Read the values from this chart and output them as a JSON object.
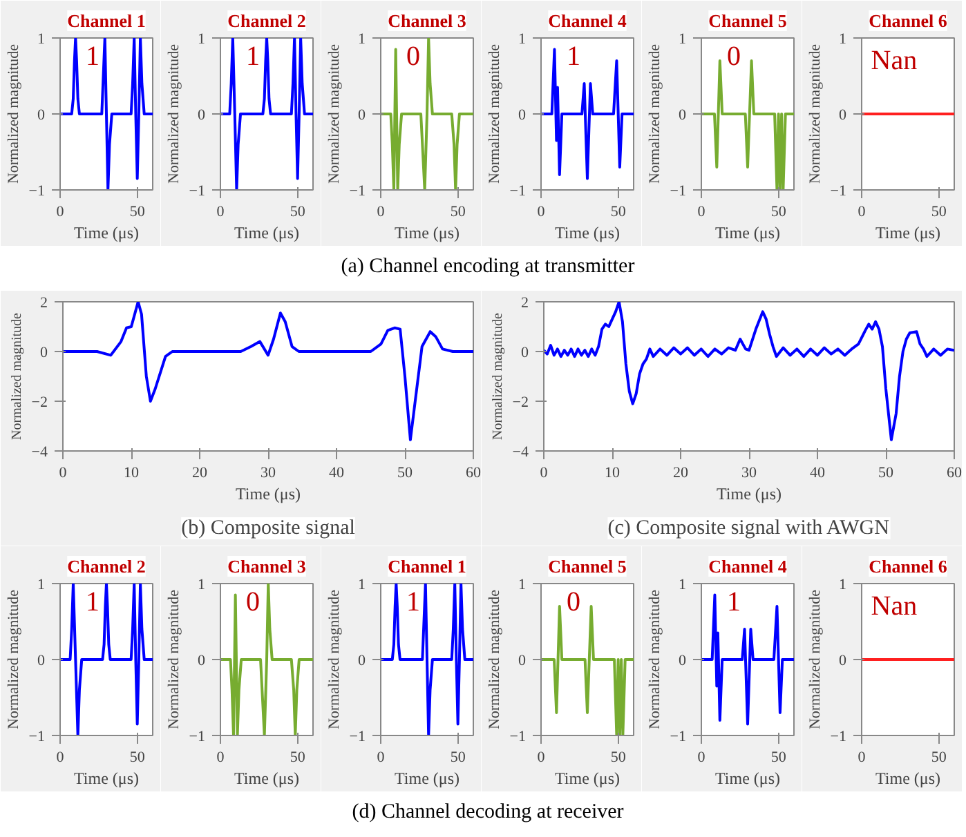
{
  "chart_data": [
    {
      "type": "line",
      "title": "Channel 1",
      "xlabel": "Time (μs)",
      "ylabel": "Normalized magnitude",
      "xlim": [
        0,
        60
      ],
      "ylim": [
        -1,
        1
      ],
      "xticks": [
        0,
        50
      ],
      "yticks": [
        -1,
        0,
        1
      ],
      "annotations": [
        "1",
        "(a) Channel encoding at transmitter"
      ],
      "x": [
        0,
        7.5,
        8.5,
        9.3,
        10,
        10.7,
        11.5,
        12.5,
        27,
        28,
        29,
        30,
        31,
        32,
        33.5,
        46,
        47,
        48,
        49,
        50,
        51,
        52,
        53,
        54.5,
        60
      ],
      "series": [
        {
          "color": "#0000ff",
          "values": [
            0,
            0,
            0.2,
            0.7,
            1,
            0.7,
            0.2,
            0,
            0,
            0.5,
            1,
            0,
            -1,
            -0.4,
            0,
            0,
            0.4,
            1,
            0,
            -0.85,
            0,
            1,
            0.4,
            0,
            0
          ]
        }
      ]
    },
    {
      "type": "line",
      "title": "Channel 2",
      "xlabel": "Time (μs)",
      "ylabel": "Normalized magnitude",
      "xlim": [
        0,
        60
      ],
      "ylim": [
        -1,
        1
      ],
      "xticks": [
        0,
        50
      ],
      "yticks": [
        -1,
        0,
        1
      ],
      "annotations": [
        "1"
      ],
      "x": [
        0,
        6,
        7,
        8,
        9.3,
        10.5,
        11.5,
        13,
        27.5,
        28.5,
        29.3,
        30,
        30.7,
        31.5,
        32.5,
        46,
        47,
        48,
        49,
        50,
        51,
        52,
        53,
        54.5,
        60
      ],
      "series": [
        {
          "color": "#0000ff",
          "values": [
            0,
            0,
            0.4,
            1,
            0,
            -1,
            -0.4,
            0,
            0,
            0.2,
            0.7,
            1,
            0.7,
            0.2,
            0,
            0,
            0.4,
            1,
            0,
            -0.85,
            0,
            1,
            0.4,
            0,
            0
          ]
        }
      ]
    },
    {
      "type": "line",
      "title": "Channel 3",
      "xlabel": "Time (μs)",
      "ylabel": "Normalized magnitude",
      "xlim": [
        0,
        60
      ],
      "ylim": [
        -1,
        1
      ],
      "xticks": [
        0,
        50
      ],
      "yticks": [
        -1,
        0,
        1
      ],
      "annotations": [
        "0"
      ],
      "x": [
        0,
        6.5,
        7.5,
        8.5,
        9.7,
        11,
        12,
        13.5,
        26,
        27,
        28.5,
        30,
        31,
        32,
        33.5,
        46,
        47.5,
        48.5,
        49.5,
        51,
        60
      ],
      "series": [
        {
          "color": "#77ac30",
          "values": [
            0,
            0,
            -0.4,
            -1,
            0.85,
            -1,
            -0.4,
            0,
            0,
            -0.4,
            -1,
            0,
            1,
            0.4,
            0,
            0,
            -0.4,
            -1,
            -0.4,
            0,
            0
          ]
        }
      ]
    },
    {
      "type": "line",
      "title": "Channel 4",
      "xlabel": "Time (μs)",
      "ylabel": "Normalized magnitude",
      "xlim": [
        0,
        60
      ],
      "ylim": [
        -1,
        1
      ],
      "xticks": [
        0,
        50
      ],
      "yticks": [
        -1,
        0,
        1
      ],
      "annotations": [
        "1"
      ],
      "x": [
        0,
        7,
        8.7,
        10,
        10.7,
        12,
        13.5,
        26.5,
        28,
        30,
        32,
        33.5,
        47,
        49,
        51,
        52.5,
        60
      ],
      "series": [
        {
          "color": "#0000ff",
          "values": [
            0,
            0,
            0.85,
            -0.35,
            0.35,
            -0.8,
            0,
            0,
            0.4,
            -0.85,
            0.4,
            0,
            0,
            0.7,
            -0.7,
            0,
            0
          ]
        }
      ]
    },
    {
      "type": "line",
      "title": "Channel 5",
      "xlabel": "Time (μs)",
      "ylabel": "Normalized magnitude",
      "xlim": [
        0,
        60
      ],
      "ylim": [
        -1,
        1
      ],
      "xticks": [
        0,
        50
      ],
      "yticks": [
        -1,
        0,
        1
      ],
      "annotations": [
        "0"
      ],
      "x": [
        0,
        8.5,
        10,
        12,
        13.5,
        28.5,
        30,
        32.5,
        34,
        47.5,
        49,
        50,
        51,
        52,
        53,
        54.5,
        60
      ],
      "series": [
        {
          "color": "#77ac30",
          "values": [
            0,
            0,
            -0.7,
            0.7,
            0,
            0,
            -0.7,
            0.7,
            0,
            0,
            -1,
            0,
            -1,
            0,
            -1,
            0,
            0
          ]
        }
      ]
    },
    {
      "type": "line",
      "title": "Channel 6",
      "xlabel": "Time (μs)",
      "ylabel": "Normalized magnitude",
      "xlim": [
        0,
        60
      ],
      "ylim": [
        -1,
        1
      ],
      "xticks": [
        0,
        50
      ],
      "yticks": [
        -1,
        0,
        1
      ],
      "annotations": [
        "Nan"
      ],
      "x": [
        0,
        60
      ],
      "series": [
        {
          "color": "#ff2020",
          "values": [
            0,
            0
          ]
        }
      ]
    },
    {
      "type": "line",
      "xlabel": "Time (μs)",
      "ylabel": "Normalized magnitude",
      "xlim": [
        0,
        60
      ],
      "ylim": [
        -4,
        2
      ],
      "xticks": [
        0,
        10,
        20,
        30,
        40,
        50,
        60
      ],
      "yticks": [
        -4,
        -2,
        0,
        2
      ],
      "annotations": [
        "(b) Composite signal"
      ],
      "x": [
        0,
        5,
        7,
        8.5,
        9.3,
        10,
        11,
        11.5,
        12.2,
        12.8,
        13.5,
        15,
        16,
        26,
        27.5,
        28.8,
        30,
        30.8,
        31.8,
        32.5,
        33.5,
        34.5,
        45,
        46.5,
        47.5,
        48.5,
        49.3,
        50,
        50.8,
        51.5,
        52.5,
        53.7,
        54.5,
        55.5,
        57,
        60
      ],
      "series": [
        {
          "color": "#0000ff",
          "values": [
            0,
            0,
            -0.15,
            0.4,
            0.95,
            1,
            2,
            1.5,
            -1,
            -2,
            -1.5,
            -0.2,
            0,
            0,
            0.2,
            0.4,
            -0.15,
            0.5,
            1.55,
            1.2,
            0.2,
            0,
            0,
            0.3,
            0.85,
            0.95,
            0.9,
            -1,
            -3.55,
            -2,
            0.2,
            0.8,
            0.6,
            0.1,
            0,
            0
          ]
        }
      ]
    },
    {
      "type": "line",
      "xlabel": "Time (μs)",
      "ylabel": "Normalized magnitude",
      "xlim": [
        0,
        60
      ],
      "ylim": [
        -4,
        2
      ],
      "xticks": [
        0,
        10,
        20,
        30,
        40,
        50,
        60
      ],
      "yticks": [
        -4,
        -2,
        0,
        2
      ],
      "annotations": [
        "(c) Composite signal with AWGN"
      ],
      "x": [
        0,
        0.5,
        1,
        1.5,
        2,
        2.5,
        3,
        3.5,
        4,
        4.5,
        5,
        5.5,
        6,
        6.5,
        7,
        7.5,
        8,
        8.5,
        9,
        9.5,
        10,
        10.5,
        11,
        11.5,
        12,
        12.5,
        13,
        13.5,
        14,
        14.5,
        15,
        15.5,
        16,
        17,
        18,
        19,
        20,
        21,
        22,
        23,
        24,
        25,
        26,
        27,
        28,
        28.7,
        29.5,
        30,
        31,
        32,
        32.5,
        33,
        33.5,
        34,
        35,
        36,
        37,
        38,
        39,
        40,
        41,
        42,
        43,
        44,
        45,
        46,
        47,
        47.5,
        48,
        48.5,
        49,
        49.5,
        50,
        50.8,
        51.5,
        52,
        52.5,
        53,
        53.5,
        54.5,
        55,
        55.5,
        56,
        57,
        58,
        59,
        60
      ],
      "series": [
        {
          "color": "#0000ff",
          "values": [
            0.05,
            -0.1,
            0.25,
            -0.15,
            0.1,
            -0.2,
            0.05,
            -0.15,
            0.1,
            -0.2,
            0.1,
            -0.15,
            0.05,
            -0.2,
            0.1,
            -0.15,
            0.2,
            0.9,
            1.1,
            1.0,
            1.3,
            1.6,
            2.0,
            1.2,
            -0.5,
            -1.6,
            -2.1,
            -1.7,
            -0.9,
            -0.5,
            -0.3,
            0.1,
            -0.2,
            0.1,
            -0.15,
            0.15,
            -0.1,
            0.15,
            -0.15,
            0.1,
            -0.2,
            0.1,
            -0.1,
            0.15,
            0.05,
            0.5,
            0.1,
            0.05,
            0.9,
            1.6,
            1.3,
            0.7,
            0.2,
            -0.2,
            0.15,
            -0.15,
            0.1,
            -0.2,
            0.1,
            -0.15,
            0.15,
            -0.1,
            0.1,
            -0.15,
            0.1,
            0.3,
            0.85,
            1.1,
            0.9,
            1.2,
            0.9,
            0.2,
            -1.5,
            -3.55,
            -2.5,
            -1.0,
            0.0,
            0.5,
            0.75,
            0.8,
            0.3,
            0.1,
            -0.2,
            0.1,
            -0.15,
            0.1,
            0.05
          ]
        }
      ]
    },
    {
      "type": "line",
      "title": "Channel 2",
      "xlabel": "Time (μs)",
      "ylabel": "Normalized magnitude",
      "xlim": [
        0,
        60
      ],
      "ylim": [
        -1,
        1
      ],
      "xticks": [
        0,
        50
      ],
      "yticks": [
        -1,
        0,
        1
      ],
      "annotations": [
        "1",
        "(d) Channel decoding at receiver"
      ],
      "x": [
        0,
        6.5,
        7.5,
        8.5,
        10,
        11.5,
        12.5,
        14,
        27.5,
        28.5,
        29.3,
        30,
        30.7,
        31.5,
        32.5,
        46,
        47,
        48,
        49,
        50,
        51,
        52,
        53,
        54.5,
        60
      ],
      "series": [
        {
          "color": "#0000ff",
          "values": [
            0,
            0,
            0.4,
            1,
            0,
            -1,
            -0.4,
            0,
            0,
            0.2,
            0.7,
            1,
            0.7,
            0.2,
            0,
            0,
            0.4,
            1,
            0,
            -0.85,
            0,
            1,
            0.4,
            0,
            0
          ]
        }
      ]
    },
    {
      "type": "line",
      "title": "Channel 3",
      "xlabel": "Time (μs)",
      "ylabel": "Normalized magnitude",
      "xlim": [
        0,
        60
      ],
      "ylim": [
        -1,
        1
      ],
      "xticks": [
        0,
        50
      ],
      "yticks": [
        -1,
        0,
        1
      ],
      "annotations": [
        "0"
      ],
      "x": [
        0,
        6.5,
        7.5,
        8.5,
        9.7,
        11,
        12,
        13.5,
        26,
        27,
        28.5,
        30,
        31,
        32,
        33.5,
        46,
        47.5,
        48.5,
        49.5,
        51,
        60
      ],
      "series": [
        {
          "color": "#77ac30",
          "values": [
            0,
            0,
            -0.4,
            -1,
            0.85,
            -1,
            -0.4,
            0,
            0,
            -0.4,
            -1,
            0,
            1,
            0.4,
            0,
            0,
            -0.4,
            -1,
            -0.4,
            0,
            0
          ]
        }
      ]
    },
    {
      "type": "line",
      "title": "Channel 1",
      "xlabel": "Time (μs)",
      "ylabel": "Normalized magnitude",
      "xlim": [
        0,
        60
      ],
      "ylim": [
        -1,
        1
      ],
      "xticks": [
        0,
        50
      ],
      "yticks": [
        -1,
        0,
        1
      ],
      "annotations": [
        "1"
      ],
      "x": [
        0,
        7.5,
        8.5,
        9.3,
        10,
        10.7,
        11.5,
        12.5,
        27,
        28,
        29,
        30,
        31,
        32,
        33.5,
        46,
        47,
        48,
        49,
        50,
        51,
        52,
        53,
        54.5,
        60
      ],
      "series": [
        {
          "color": "#0000ff",
          "values": [
            0,
            0,
            0.2,
            0.7,
            1,
            0.7,
            0.2,
            0,
            0,
            0.5,
            1,
            0,
            -1,
            -0.4,
            0,
            0,
            0.4,
            1,
            0,
            -0.85,
            0,
            1,
            0.4,
            0,
            0
          ]
        }
      ]
    },
    {
      "type": "line",
      "title": "Channel 5",
      "xlabel": "Time (μs)",
      "ylabel": "Normalized magnitude",
      "xlim": [
        0,
        60
      ],
      "ylim": [
        -1,
        1
      ],
      "xticks": [
        0,
        50
      ],
      "yticks": [
        -1,
        0,
        1
      ],
      "annotations": [
        "0"
      ],
      "x": [
        0,
        8.5,
        10,
        12,
        13.5,
        28.5,
        30,
        32.5,
        34,
        47.5,
        49,
        50,
        51,
        52,
        53,
        54.5,
        60
      ],
      "series": [
        {
          "color": "#77ac30",
          "values": [
            0,
            0,
            -0.7,
            0.7,
            0,
            0,
            -0.7,
            0.7,
            0,
            0,
            -1,
            0,
            -1,
            0,
            -1,
            0,
            0
          ]
        }
      ]
    },
    {
      "type": "line",
      "title": "Channel 4",
      "xlabel": "Time (μs)",
      "ylabel": "Normalized magnitude",
      "xlim": [
        0,
        60
      ],
      "ylim": [
        -1,
        1
      ],
      "xticks": [
        0,
        50
      ],
      "yticks": [
        -1,
        0,
        1
      ],
      "annotations": [
        "1"
      ],
      "x": [
        0,
        7,
        8.7,
        10,
        10.7,
        12,
        13.5,
        26.5,
        28,
        30,
        32,
        33.5,
        47,
        49,
        51,
        52.5,
        60
      ],
      "series": [
        {
          "color": "#0000ff",
          "values": [
            0,
            0,
            0.85,
            -0.35,
            0.35,
            -0.8,
            0,
            0,
            0.4,
            -0.85,
            0.4,
            0,
            0,
            0.7,
            -0.7,
            0,
            0
          ]
        }
      ]
    },
    {
      "type": "line",
      "title": "Channel 6",
      "xlabel": "Time (μs)",
      "ylabel": "Normalized magnitude",
      "xlim": [
        0,
        60
      ],
      "ylim": [
        -1,
        1
      ],
      "xticks": [
        0,
        50
      ],
      "yticks": [
        -1,
        0,
        1
      ],
      "annotations": [
        "Nan"
      ],
      "x": [
        0,
        60
      ],
      "series": [
        {
          "color": "#ff2020",
          "values": [
            0,
            0
          ]
        }
      ]
    }
  ]
}
